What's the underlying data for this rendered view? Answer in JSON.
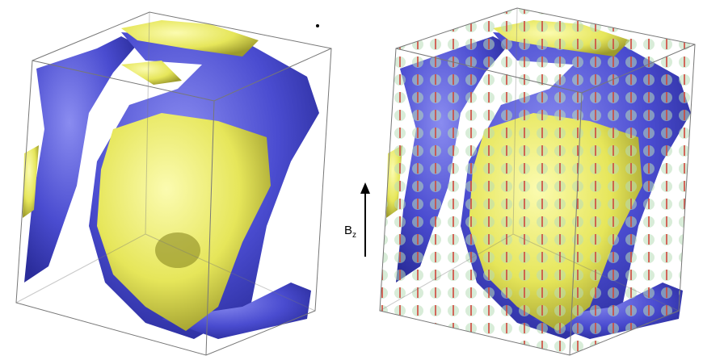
{
  "annotation": {
    "base": "B",
    "subscript": "z"
  }
}
